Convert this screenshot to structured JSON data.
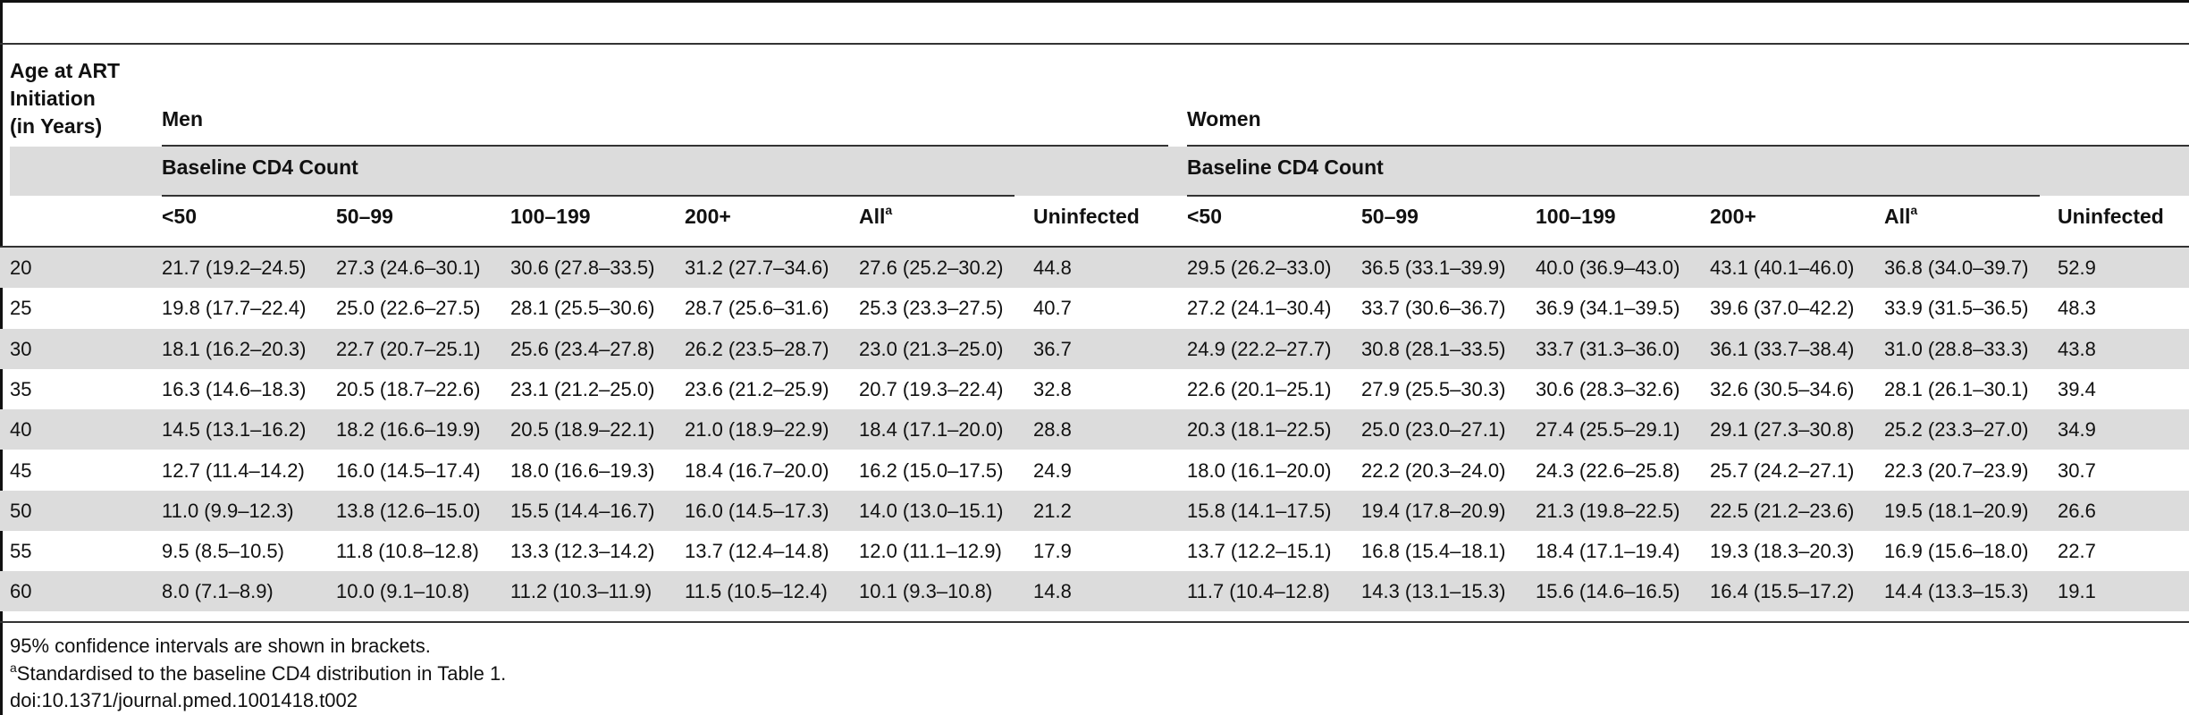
{
  "table": {
    "stub_header": [
      "Age at ART",
      "Initiation",
      "(in Years)"
    ],
    "groups": [
      {
        "label": "Men",
        "subheader": "Baseline CD4 Count"
      },
      {
        "label": "Women",
        "subheader": "Baseline CD4 Count"
      }
    ],
    "columns": [
      "<50",
      "50–99",
      "100–199",
      "200+",
      "All",
      "Uninfected"
    ],
    "all_note_marker": "a",
    "rows": [
      {
        "age": "20",
        "men": [
          "21.7 (19.2–24.5)",
          "27.3 (24.6–30.1)",
          "30.6 (27.8–33.5)",
          "31.2 (27.7–34.6)",
          "27.6 (25.2–30.2)",
          "44.8"
        ],
        "women": [
          "29.5 (26.2–33.0)",
          "36.5 (33.1–39.9)",
          "40.0 (36.9–43.0)",
          "43.1 (40.1–46.0)",
          "36.8 (34.0–39.7)",
          "52.9"
        ]
      },
      {
        "age": "25",
        "men": [
          "19.8 (17.7–22.4)",
          "25.0 (22.6–27.5)",
          "28.1 (25.5–30.6)",
          "28.7 (25.6–31.6)",
          "25.3 (23.3–27.5)",
          "40.7"
        ],
        "women": [
          "27.2 (24.1–30.4)",
          "33.7 (30.6–36.7)",
          "36.9 (34.1–39.5)",
          "39.6 (37.0–42.2)",
          "33.9 (31.5–36.5)",
          "48.3"
        ]
      },
      {
        "age": "30",
        "men": [
          "18.1 (16.2–20.3)",
          "22.7 (20.7–25.1)",
          "25.6 (23.4–27.8)",
          "26.2 (23.5–28.7)",
          "23.0 (21.3–25.0)",
          "36.7"
        ],
        "women": [
          "24.9 (22.2–27.7)",
          "30.8 (28.1–33.5)",
          "33.7 (31.3–36.0)",
          "36.1 (33.7–38.4)",
          "31.0 (28.8–33.3)",
          "43.8"
        ]
      },
      {
        "age": "35",
        "men": [
          "16.3 (14.6–18.3)",
          "20.5 (18.7–22.6)",
          "23.1 (21.2–25.0)",
          "23.6 (21.2–25.9)",
          "20.7 (19.3–22.4)",
          "32.8"
        ],
        "women": [
          "22.6 (20.1–25.1)",
          "27.9 (25.5–30.3)",
          "30.6 (28.3–32.6)",
          "32.6 (30.5–34.6)",
          "28.1 (26.1–30.1)",
          "39.4"
        ]
      },
      {
        "age": "40",
        "men": [
          "14.5 (13.1–16.2)",
          "18.2 (16.6–19.9)",
          "20.5 (18.9–22.1)",
          "21.0 (18.9–22.9)",
          "18.4 (17.1–20.0)",
          "28.8"
        ],
        "women": [
          "20.3 (18.1–22.5)",
          "25.0 (23.0–27.1)",
          "27.4 (25.5–29.1)",
          "29.1 (27.3–30.8)",
          "25.2 (23.3–27.0)",
          "34.9"
        ]
      },
      {
        "age": "45",
        "men": [
          "12.7 (11.4–14.2)",
          "16.0 (14.5–17.4)",
          "18.0 (16.6–19.3)",
          "18.4 (16.7–20.0)",
          "16.2 (15.0–17.5)",
          "24.9"
        ],
        "women": [
          "18.0 (16.1–20.0)",
          "22.2 (20.3–24.0)",
          "24.3 (22.6–25.8)",
          "25.7 (24.2–27.1)",
          "22.3 (20.7–23.9)",
          "30.7"
        ]
      },
      {
        "age": "50",
        "men": [
          "11.0 (9.9–12.3)",
          "13.8 (12.6–15.0)",
          "15.5 (14.4–16.7)",
          "16.0 (14.5–17.3)",
          "14.0 (13.0–15.1)",
          "21.2"
        ],
        "women": [
          "15.8 (14.1–17.5)",
          "19.4 (17.8–20.9)",
          "21.3 (19.8–22.5)",
          "22.5 (21.2–23.6)",
          "19.5 (18.1–20.9)",
          "26.6"
        ]
      },
      {
        "age": "55",
        "men": [
          "9.5 (8.5–10.5)",
          "11.8 (10.8–12.8)",
          "13.3 (12.3–14.2)",
          "13.7 (12.4–14.8)",
          "12.0 (11.1–12.9)",
          "17.9"
        ],
        "women": [
          "13.7 (12.2–15.1)",
          "16.8 (15.4–18.1)",
          "18.4 (17.1–19.4)",
          "19.3 (18.3–20.3)",
          "16.9 (15.6–18.0)",
          "22.7"
        ]
      },
      {
        "age": "60",
        "men": [
          "8.0 (7.1–8.9)",
          "10.0 (9.1–10.8)",
          "11.2 (10.3–11.9)",
          "11.5 (10.5–12.4)",
          "10.1 (9.3–10.8)",
          "14.8"
        ],
        "women": [
          "11.7 (10.4–12.8)",
          "14.3 (13.1–15.3)",
          "15.6 (14.6–16.5)",
          "16.4 (15.5–17.2)",
          "14.4 (13.3–15.3)",
          "19.1"
        ]
      }
    ]
  },
  "footnotes": {
    "ci_note": "95% confidence intervals are shown in brackets.",
    "a_marker": "a",
    "a_text": "Standardised to the baseline CD4 distribution in Table 1.",
    "doi": "doi:10.1371/journal.pmed.1001418.t002"
  }
}
